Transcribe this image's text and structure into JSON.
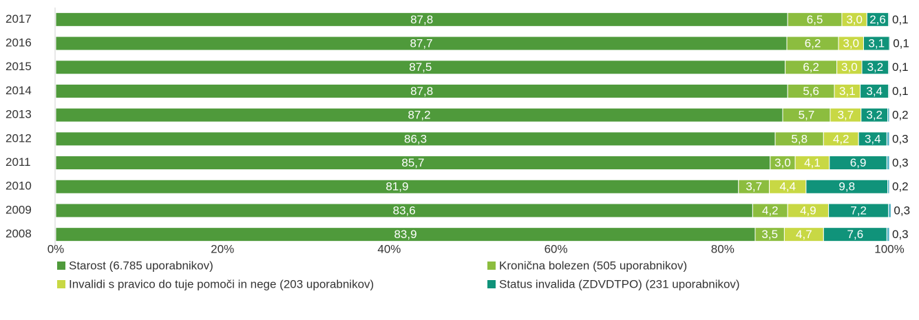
{
  "chart_data": {
    "type": "stacked_barh",
    "categories": [
      "2017",
      "2016",
      "2015",
      "2014",
      "2013",
      "2012",
      "2011",
      "2010",
      "2009",
      "2008"
    ],
    "series": [
      {
        "name": "Starost (6.785 uporabnikov)",
        "color": "#4f9a3b",
        "values": [
          87.8,
          87.7,
          87.5,
          87.8,
          87.2,
          86.3,
          85.7,
          81.9,
          83.6,
          83.9
        ],
        "value_labels": [
          "87,8",
          "87,7",
          "87,5",
          "87,8",
          "87,2",
          "86,3",
          "85,7",
          "81,9",
          "83,6",
          "83,9"
        ]
      },
      {
        "name": "Kronična bolezen (505 uporabnikov)",
        "color": "#8cbd3f",
        "values": [
          6.5,
          6.2,
          6.2,
          5.6,
          5.7,
          5.8,
          3.0,
          3.7,
          4.2,
          3.5
        ],
        "value_labels": [
          "6,5",
          "6,2",
          "6,2",
          "5,6",
          "5,7",
          "5,8",
          "3,0",
          "3,7",
          "4,2",
          "3,5"
        ]
      },
      {
        "name": "Invalidi s pravico do tuje pomoči in nege (203 uporabnikov)",
        "color": "#c8d844",
        "values": [
          3.0,
          3.0,
          3.0,
          3.1,
          3.7,
          4.2,
          4.1,
          4.4,
          4.9,
          4.7
        ],
        "value_labels": [
          "3,0",
          "3,0",
          "3,0",
          "3,1",
          "3,7",
          "4,2",
          "4,1",
          "4,4",
          "4,9",
          "4,7"
        ]
      },
      {
        "name": "Status invalida (ZDVDTPO) (231 uporabnikov)",
        "color": "#10937a",
        "values": [
          2.6,
          3.1,
          3.2,
          3.4,
          3.2,
          3.4,
          6.9,
          9.8,
          7.2,
          7.6
        ],
        "value_labels": [
          "2,6",
          "3,1",
          "3,2",
          "3,4",
          "3,2",
          "3,4",
          "6,9",
          "9,8",
          "7,2",
          "7,6"
        ]
      },
      {
        "color": "#4fb0c4",
        "values": [
          0.1,
          0.1,
          0.1,
          0.1,
          0.2,
          0.3,
          0.3,
          0.2,
          0.3,
          0.3
        ],
        "value_labels": [
          "0,1",
          "0,1",
          "0,1",
          "0,1",
          "0,2",
          "0,3",
          "0,3",
          "0,2",
          "0,3",
          "0,3"
        ]
      }
    ],
    "xlim": [
      0,
      100
    ],
    "xticks": [
      {
        "value": 0,
        "label": "0%"
      },
      {
        "value": 20,
        "label": "20%"
      },
      {
        "value": 40,
        "label": "40%"
      },
      {
        "value": 60,
        "label": "60%"
      },
      {
        "value": 80,
        "label": "80%"
      },
      {
        "value": 100,
        "label": "100%"
      }
    ],
    "legend": "bottom"
  }
}
